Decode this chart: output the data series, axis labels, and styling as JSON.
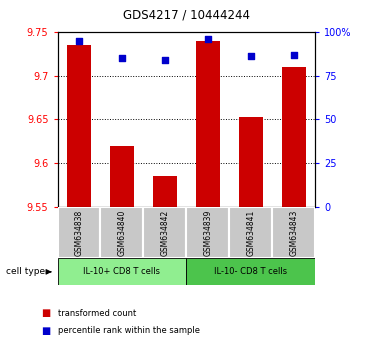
{
  "title": "GDS4217 / 10444244",
  "samples": [
    "GSM634838",
    "GSM634840",
    "GSM634842",
    "GSM634839",
    "GSM634841",
    "GSM634843"
  ],
  "red_values": [
    9.735,
    9.62,
    9.585,
    9.74,
    9.653,
    9.71
  ],
  "blue_values": [
    95,
    85,
    84,
    96,
    86,
    87
  ],
  "ylim_left": [
    9.55,
    9.75
  ],
  "ylim_right": [
    0,
    100
  ],
  "yticks_left": [
    9.55,
    9.6,
    9.65,
    9.7,
    9.75
  ],
  "yticks_right": [
    0,
    25,
    50,
    75,
    100
  ],
  "ytick_labels_right": [
    "0",
    "25",
    "50",
    "75",
    "100%"
  ],
  "groups": [
    {
      "label": "IL-10+ CD8 T cells",
      "indices": [
        0,
        1,
        2
      ],
      "color": "#90EE90"
    },
    {
      "label": "IL-10- CD8 T cells",
      "indices": [
        3,
        4,
        5
      ],
      "color": "#4CC44C"
    }
  ],
  "bar_color_red": "#CC0000",
  "bar_color_blue": "#0000CC",
  "sample_bg_color": "#C8C8C8",
  "legend_red": "transformed count",
  "legend_blue": "percentile rank within the sample",
  "cell_type_label": "cell type"
}
